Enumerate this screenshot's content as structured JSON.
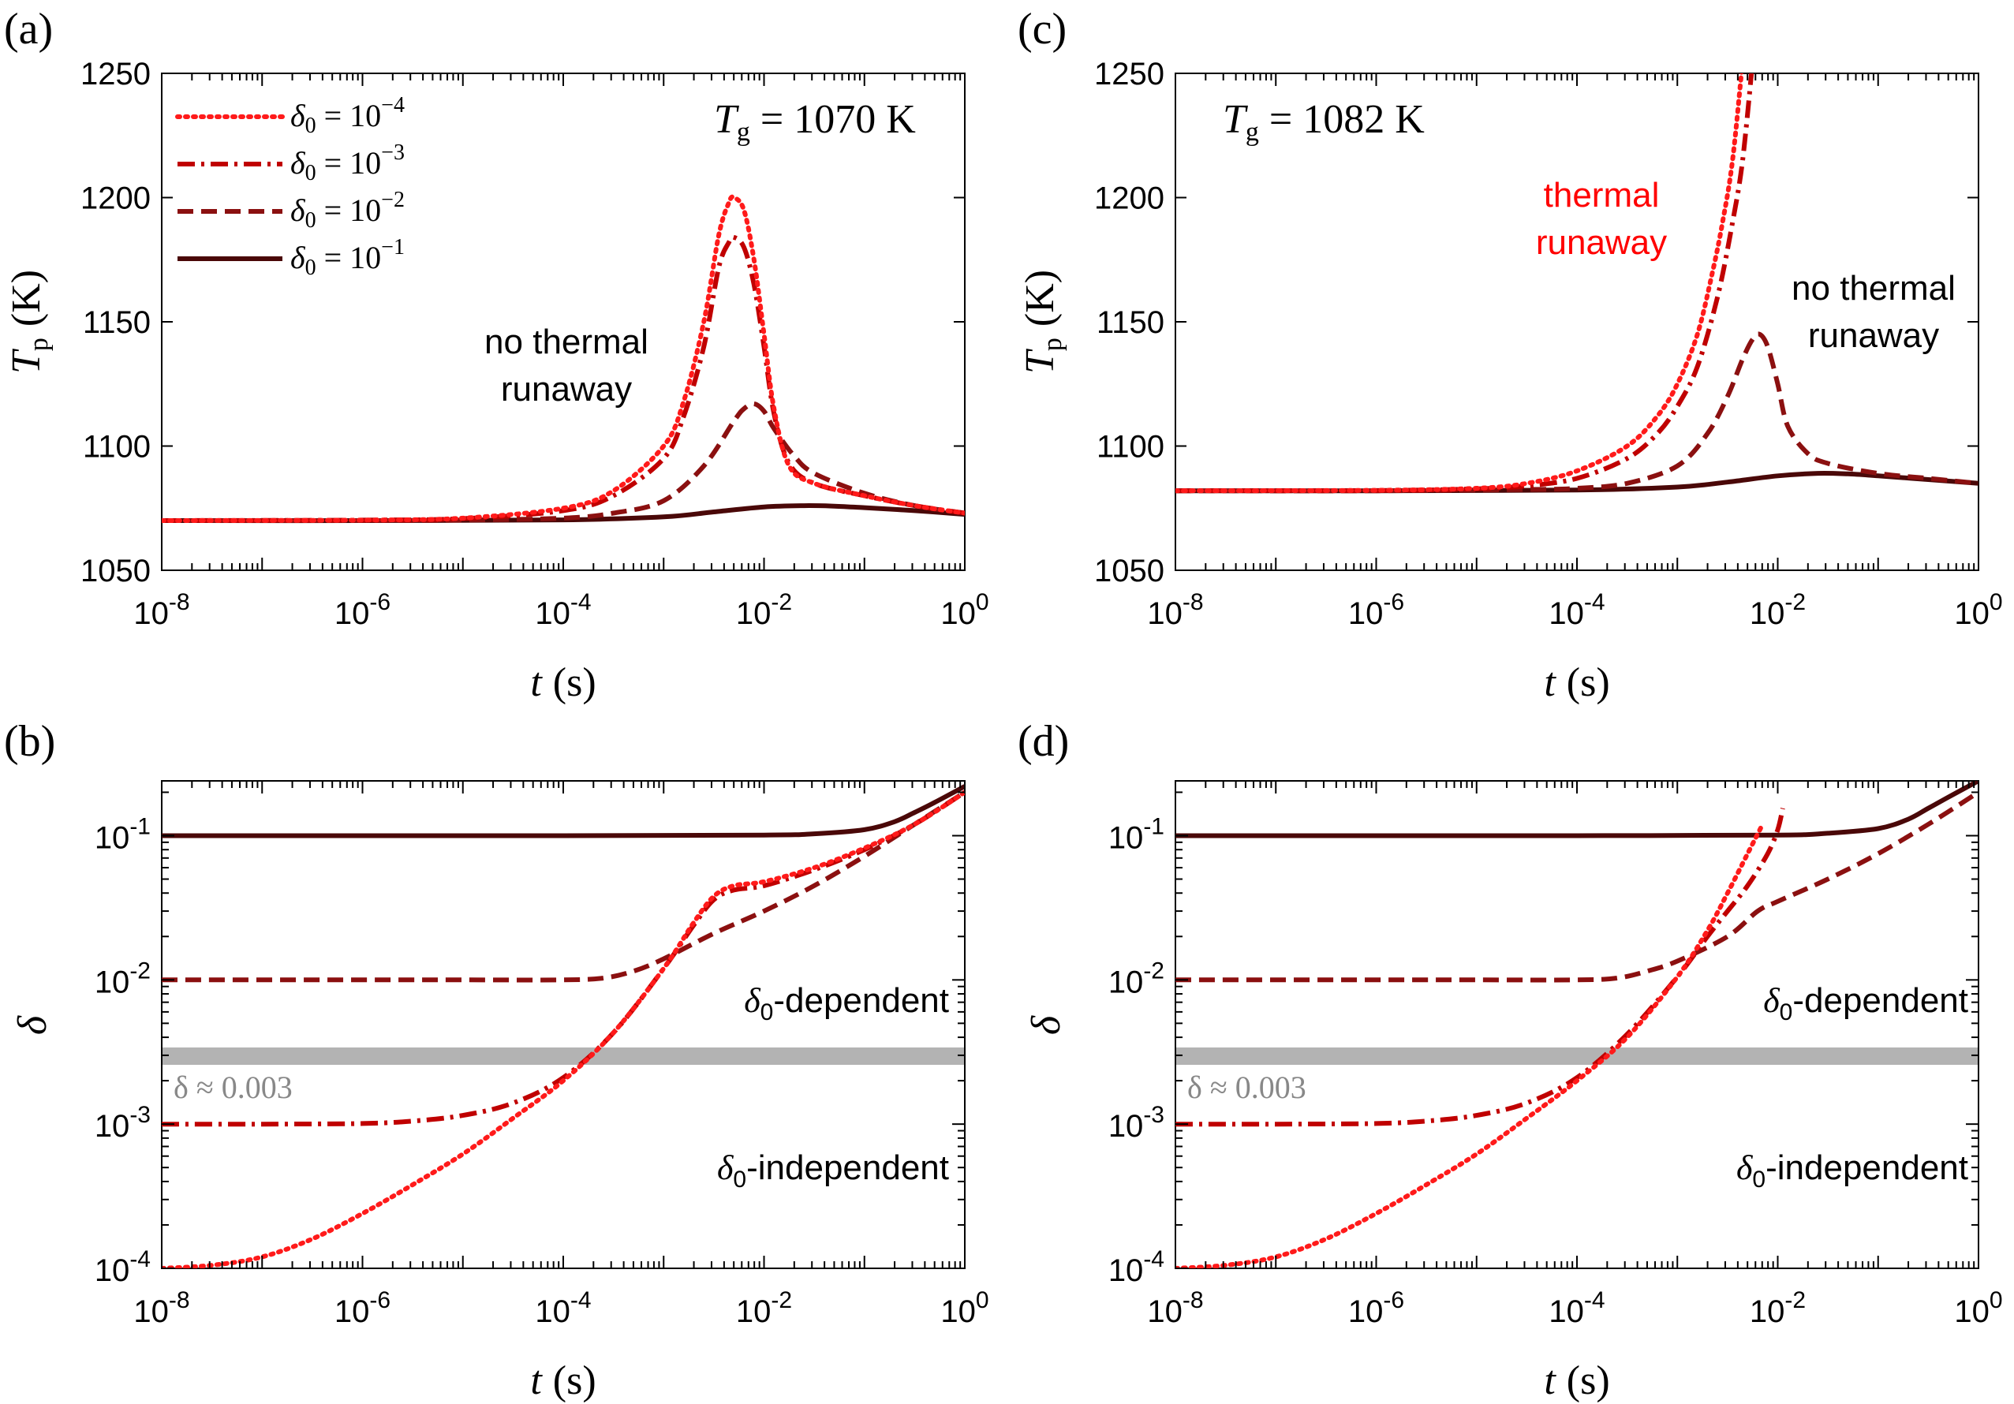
{
  "colors": {
    "d4": "#ff1a1a",
    "d3": "#c00000",
    "d2": "#8b1010",
    "d1": "#4a0808",
    "band": "#b3b3b3",
    "band_text": "#888888",
    "runaway_text": "#ff0000"
  },
  "legend": [
    {
      "key": "d4",
      "sym": "δ",
      "sub": "0",
      "eq": " = 10",
      "exp": "−4",
      "dash": "dotted"
    },
    {
      "key": "d3",
      "sym": "δ",
      "sub": "0",
      "eq": " = 10",
      "exp": "−3",
      "dash": "dashdot"
    },
    {
      "key": "d2",
      "sym": "δ",
      "sub": "0",
      "eq": " = 10",
      "exp": "−2",
      "dash": "dashed"
    },
    {
      "key": "d1",
      "sym": "δ",
      "sub": "0",
      "eq": " = 10",
      "exp": "−1",
      "dash": "solid"
    }
  ],
  "chart_data": [
    {
      "panel": "(a)",
      "type": "line",
      "xscale": "log",
      "yscale": "linear",
      "xlim": [
        -8,
        0
      ],
      "ylim": [
        1050,
        1250
      ],
      "xticks": [
        -8,
        -6,
        -4,
        -2,
        0
      ],
      "xtick_base": "10",
      "xtick_exps": [
        "-8",
        "-6",
        "-4",
        "-2",
        "0"
      ],
      "yticks": [
        1050,
        1100,
        1150,
        1200,
        1250
      ],
      "ytick_labels": [
        "1050",
        "1100",
        "1150",
        "1200",
        "1250"
      ],
      "xlabel_var": "t",
      "xlabel_unit": "(s)",
      "ylabel_var": "T",
      "ylabel_sub": "p",
      "ylabel_unit": "(K)",
      "tg_var": "T",
      "tg_sub": "g",
      "tg_value": " = 1070 K",
      "legend_location": "top-left",
      "notes": [
        {
          "lines": [
            "no thermal",
            "runaway"
          ],
          "color": "black"
        }
      ],
      "series": [
        {
          "name": "δ0 = 1e-4",
          "key": "d4",
          "dash": "dotted",
          "x": [
            -8,
            -6,
            -5,
            -4,
            -3.5,
            -3,
            -2.8,
            -2.6,
            -2.45,
            -2.35,
            -2.3,
            -2.2,
            -2.1,
            -2,
            -1.9,
            -1.75,
            -1.5,
            -1,
            -0.5,
            0
          ],
          "y": [
            1070,
            1070.2,
            1071,
            1075,
            1082,
            1100,
            1118,
            1150,
            1185,
            1198,
            1200,
            1195,
            1175,
            1145,
            1115,
            1092,
            1085,
            1080,
            1076,
            1073
          ]
        },
        {
          "name": "δ0 = 1e-3",
          "key": "d3",
          "dash": "dashdot",
          "x": [
            -8,
            -6,
            -5,
            -4,
            -3.5,
            -3,
            -2.8,
            -2.6,
            -2.45,
            -2.35,
            -2.3,
            -2.2,
            -2.1,
            -2,
            -1.9,
            -1.75,
            -1.5,
            -1,
            -0.5,
            0
          ],
          "y": [
            1070,
            1070.2,
            1070.8,
            1074,
            1080,
            1095,
            1112,
            1140,
            1172,
            1182,
            1184,
            1180,
            1165,
            1140,
            1113,
            1093,
            1085,
            1080,
            1076,
            1073
          ]
        },
        {
          "name": "δ0 = 1e-2",
          "key": "d2",
          "dash": "dashed",
          "x": [
            -8,
            -6,
            -5,
            -4,
            -3.5,
            -3,
            -2.6,
            -2.3,
            -2.2,
            -2.1,
            -2,
            -1.9,
            -1.7,
            -1.5,
            -1,
            -0.5,
            0
          ],
          "y": [
            1070,
            1070,
            1070.2,
            1071,
            1073,
            1078,
            1092,
            1110,
            1115,
            1117,
            1114,
            1107,
            1096,
            1089,
            1081,
            1076,
            1073
          ]
        },
        {
          "name": "δ0 = 1e-1",
          "key": "d1",
          "dash": "solid",
          "x": [
            -8,
            -6,
            -4,
            -3,
            -2.5,
            -2,
            -1.6,
            -1.3,
            -1,
            -0.5,
            0
          ],
          "y": [
            1070,
            1070,
            1070.3,
            1071.5,
            1073.5,
            1075.5,
            1076,
            1075.8,
            1075.2,
            1074,
            1072.5
          ]
        }
      ]
    },
    {
      "panel": "(c)",
      "type": "line",
      "xscale": "log",
      "yscale": "linear",
      "xlim": [
        -8,
        0
      ],
      "ylim": [
        1050,
        1250
      ],
      "xticks": [
        -8,
        -6,
        -4,
        -2,
        0
      ],
      "xtick_base": "10",
      "xtick_exps": [
        "-8",
        "-6",
        "-4",
        "-2",
        "0"
      ],
      "yticks": [
        1050,
        1100,
        1150,
        1200,
        1250
      ],
      "ytick_labels": [
        "1050",
        "1100",
        "1150",
        "1200",
        "1250"
      ],
      "xlabel_var": "t",
      "xlabel_unit": "(s)",
      "ylabel_var": "T",
      "ylabel_sub": "p",
      "ylabel_unit": "(K)",
      "tg_var": "T",
      "tg_sub": "g",
      "tg_value": " = 1082 K",
      "notes": [
        {
          "lines": [
            "thermal",
            "runaway"
          ],
          "color": "red"
        },
        {
          "lines": [
            "no thermal",
            "runaway"
          ],
          "color": "black"
        }
      ],
      "series": [
        {
          "name": "δ0 = 1e-4",
          "key": "d4",
          "dash": "dotted",
          "x": [
            -8,
            -6,
            -5,
            -4.5,
            -4,
            -3.5,
            -3.2,
            -3,
            -2.8,
            -2.65,
            -2.55,
            -2.45,
            -2.35
          ],
          "y": [
            1082,
            1082.2,
            1083,
            1085,
            1090,
            1100,
            1112,
            1125,
            1145,
            1170,
            1190,
            1215,
            1255
          ]
        },
        {
          "name": "δ0 = 1e-3",
          "key": "d3",
          "dash": "dashdot",
          "x": [
            -8,
            -6,
            -5,
            -4.5,
            -4,
            -3.5,
            -3.2,
            -3,
            -2.8,
            -2.6,
            -2.45,
            -2.35,
            -2.25
          ],
          "y": [
            1082,
            1082.1,
            1082.8,
            1084,
            1087,
            1095,
            1105,
            1116,
            1132,
            1160,
            1190,
            1215,
            1255
          ]
        },
        {
          "name": "δ0 = 1e-2",
          "key": "d2",
          "dash": "dashed",
          "x": [
            -8,
            -6,
            -4.5,
            -4,
            -3.5,
            -3,
            -2.7,
            -2.5,
            -2.35,
            -2.25,
            -2.18,
            -2.1,
            -2,
            -1.9,
            -1.7,
            -1.5,
            -1,
            -0.5,
            0
          ],
          "y": [
            1082,
            1082,
            1082.5,
            1083,
            1085,
            1092,
            1105,
            1120,
            1135,
            1143,
            1145,
            1140,
            1125,
            1108,
            1097,
            1093,
            1089,
            1087,
            1085
          ]
        },
        {
          "name": "δ0 = 1e-1",
          "key": "d1",
          "dash": "solid",
          "x": [
            -8,
            -6,
            -4,
            -3,
            -2.5,
            -2,
            -1.6,
            -1.3,
            -1,
            -0.5,
            0
          ],
          "y": [
            1082,
            1082,
            1082.3,
            1083.5,
            1085.5,
            1088,
            1089,
            1088.8,
            1088,
            1086.5,
            1085
          ]
        }
      ]
    },
    {
      "panel": "(b)",
      "type": "line",
      "xscale": "log",
      "yscale": "log",
      "xlim": [
        -8,
        0
      ],
      "ylim": [
        -4,
        -0.62
      ],
      "xticks": [
        -8,
        -6,
        -4,
        -2,
        0
      ],
      "xtick_base": "10",
      "xtick_exps": [
        "-8",
        "-6",
        "-4",
        "-2",
        "0"
      ],
      "yticks": [
        -4,
        -3,
        -2,
        -1
      ],
      "ytick_base": "10",
      "ytick_exps": [
        "-4",
        "-3",
        "-2",
        "-1"
      ],
      "xlabel_var": "t",
      "xlabel_unit": "(s)",
      "ylabel_var": "δ",
      "band_value": 0.003,
      "band_label": "δ ≈ 0.003",
      "region_labels": [
        {
          "sym": "δ",
          "sub": "0",
          "text": "-dependent"
        },
        {
          "sym": "δ",
          "sub": "0",
          "text": "-independent"
        }
      ],
      "series": [
        {
          "name": "δ0 = 1e-4",
          "key": "d4",
          "dash": "dotted",
          "x": [
            -8,
            -7.5,
            -7,
            -6.5,
            -6,
            -5.5,
            -5,
            -4.5,
            -4,
            -3.5,
            -3,
            -2.7,
            -2.5,
            -2.3,
            -2,
            -1.5,
            -1,
            -0.5,
            0
          ],
          "y": [
            0.0001,
            0.000105,
            0.00012,
            0.00016,
            0.00024,
            0.00038,
            0.00062,
            0.0011,
            0.002,
            0.0043,
            0.012,
            0.025,
            0.038,
            0.045,
            0.048,
            0.06,
            0.082,
            0.12,
            0.2
          ]
        },
        {
          "name": "δ0 = 1e-3",
          "key": "d3",
          "dash": "dashdot",
          "x": [
            -8,
            -7,
            -6,
            -5.5,
            -5,
            -4.5,
            -4,
            -3.5,
            -3,
            -2.7,
            -2.5,
            -2.3,
            -2,
            -1.5,
            -1,
            -0.5,
            0
          ],
          "y": [
            0.001,
            0.001,
            0.00101,
            0.00105,
            0.00115,
            0.0014,
            0.0021,
            0.0043,
            0.012,
            0.024,
            0.036,
            0.042,
            0.045,
            0.058,
            0.08,
            0.12,
            0.2
          ]
        },
        {
          "name": "δ0 = 1e-2",
          "key": "d2",
          "dash": "dashed",
          "x": [
            -8,
            -6,
            -5,
            -4,
            -3.6,
            -3.3,
            -3,
            -2.5,
            -2,
            -1.5,
            -1,
            -0.5,
            0
          ],
          "y": [
            0.01,
            0.01,
            0.01,
            0.01,
            0.0103,
            0.0115,
            0.014,
            0.021,
            0.03,
            0.045,
            0.072,
            0.12,
            0.2
          ]
        },
        {
          "name": "δ0 = 1e-1",
          "key": "d1",
          "dash": "solid",
          "x": [
            -8,
            -6,
            -4,
            -2,
            -1.5,
            -1,
            -0.7,
            -0.5,
            -0.3,
            0
          ],
          "y": [
            0.1,
            0.1,
            0.1,
            0.101,
            0.103,
            0.11,
            0.125,
            0.145,
            0.17,
            0.22
          ]
        }
      ]
    },
    {
      "panel": "(d)",
      "type": "line",
      "xscale": "log",
      "yscale": "log",
      "xlim": [
        -8,
        0
      ],
      "ylim": [
        -4,
        -0.62
      ],
      "xticks": [
        -8,
        -6,
        -4,
        -2,
        0
      ],
      "xtick_base": "10",
      "xtick_exps": [
        "-8",
        "-6",
        "-4",
        "-2",
        "0"
      ],
      "yticks": [
        -4,
        -3,
        -2,
        -1
      ],
      "ytick_base": "10",
      "ytick_exps": [
        "-4",
        "-3",
        "-2",
        "-1"
      ],
      "xlabel_var": "t",
      "xlabel_unit": "(s)",
      "ylabel_var": "δ",
      "band_value": 0.003,
      "band_label": "δ ≈ 0.003",
      "region_labels": [
        {
          "sym": "δ",
          "sub": "0",
          "text": "-dependent"
        },
        {
          "sym": "δ",
          "sub": "0",
          "text": "-independent"
        }
      ],
      "series": [
        {
          "name": "δ0 = 1e-4",
          "key": "d4",
          "dash": "dotted",
          "x": [
            -8,
            -7.5,
            -7,
            -6.5,
            -6,
            -5.5,
            -5,
            -4.5,
            -4,
            -3.5,
            -3,
            -2.7,
            -2.5,
            -2.3,
            -2.15
          ],
          "y": [
            0.0001,
            0.000105,
            0.00012,
            0.00016,
            0.00024,
            0.00038,
            0.00062,
            0.0011,
            0.002,
            0.004,
            0.0105,
            0.022,
            0.04,
            0.075,
            0.12
          ]
        },
        {
          "name": "δ0 = 1e-3",
          "key": "d3",
          "dash": "dashdot",
          "x": [
            -8,
            -7,
            -6,
            -5.5,
            -5,
            -4.5,
            -4,
            -3.5,
            -3,
            -2.7,
            -2.5,
            -2.3,
            -2.1,
            -2.0,
            -1.95
          ],
          "y": [
            0.001,
            0.001,
            0.00101,
            0.00105,
            0.00115,
            0.0014,
            0.0021,
            0.0042,
            0.0105,
            0.02,
            0.03,
            0.045,
            0.075,
            0.11,
            0.155
          ]
        },
        {
          "name": "δ0 = 1e-2",
          "key": "d2",
          "dash": "dashed",
          "x": [
            -8,
            -6,
            -5,
            -4,
            -3.6,
            -3.3,
            -3,
            -2.5,
            -2.2,
            -2,
            -1.5,
            -1,
            -0.5,
            0
          ],
          "y": [
            0.01,
            0.01,
            0.01,
            0.01,
            0.0103,
            0.0115,
            0.0135,
            0.02,
            0.03,
            0.035,
            0.05,
            0.075,
            0.12,
            0.2
          ]
        },
        {
          "name": "δ0 = 1e-1",
          "key": "d1",
          "dash": "solid",
          "x": [
            -8,
            -6,
            -4,
            -2,
            -1.5,
            -1,
            -0.7,
            -0.5,
            -0.3,
            0
          ],
          "y": [
            0.1,
            0.1,
            0.1,
            0.101,
            0.104,
            0.112,
            0.13,
            0.155,
            0.185,
            0.24
          ]
        }
      ]
    }
  ]
}
